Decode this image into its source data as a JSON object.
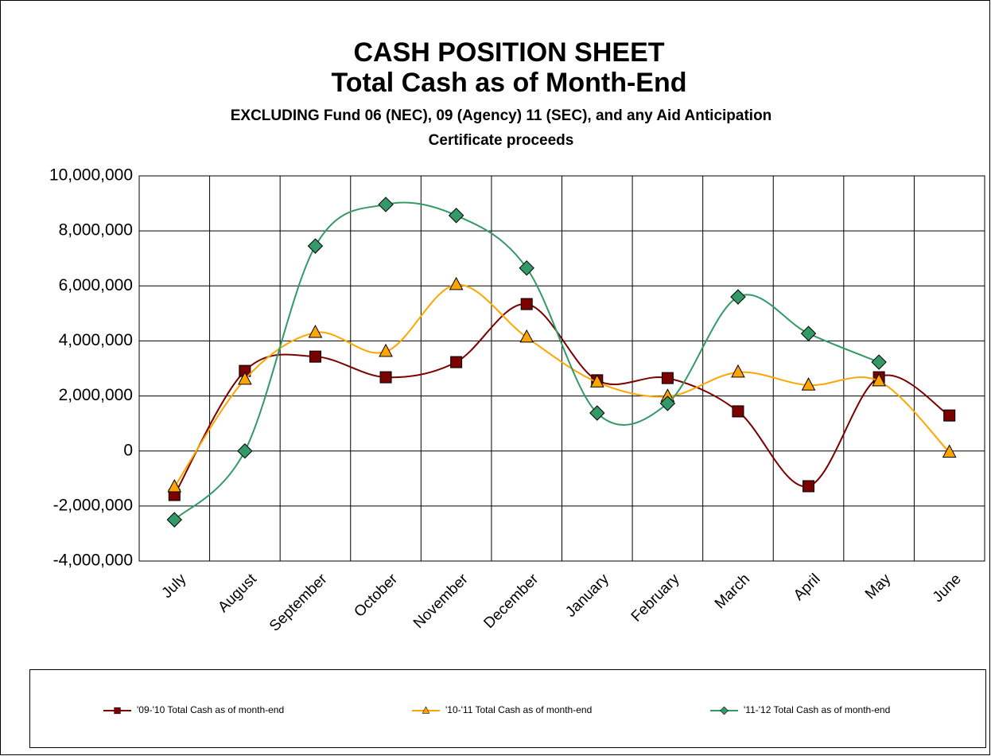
{
  "chart_data": {
    "type": "line",
    "title": [
      "CASH POSITION SHEET",
      "Total Cash as of Month-End"
    ],
    "subtitle": [
      "EXCLUDING Fund 06 (NEC), 09 (Agency) 11 (SEC), and any Aid Anticipation",
      "Certificate proceeds"
    ],
    "categories": [
      "July",
      "August",
      "September",
      "October",
      "November",
      "December",
      "January",
      "February",
      "March",
      "April",
      "May",
      "June"
    ],
    "series": [
      {
        "name": "'09-'10 Total Cash as of month-end",
        "color": "#7b0000",
        "marker": "square",
        "values": [
          -1600000,
          2910000,
          3430000,
          2680000,
          3230000,
          5340000,
          2570000,
          2650000,
          1440000,
          -1280000,
          2680000,
          1290000
        ]
      },
      {
        "name": "'10-'11 Total Cash as of month-end",
        "color": "#ffa500",
        "marker": "triangle",
        "values": [
          -1310000,
          2600000,
          4300000,
          3610000,
          6040000,
          4130000,
          2500000,
          1980000,
          2860000,
          2390000,
          2540000,
          -50000
        ]
      },
      {
        "name": "'11-'12 Total Cash as of month-end",
        "color": "#339966",
        "marker": "diamond",
        "values": [
          -2500000,
          0,
          7450000,
          8960000,
          8560000,
          6650000,
          1380000,
          1730000,
          5600000,
          4270000,
          3230000,
          null
        ]
      }
    ],
    "ylim": [
      -4000000,
      10000000
    ],
    "yticks": [
      {
        "value": -4000000,
        "label": "-4,000,000"
      },
      {
        "value": -2000000,
        "label": "-2,000,000"
      },
      0,
      {
        "value": 2000000,
        "label": "2,000,000"
      },
      {
        "value": 4000000,
        "label": "4,000,000"
      },
      {
        "value": 6000000,
        "label": "6,000,000"
      },
      {
        "value": 8000000,
        "label": "8,000,000"
      },
      {
        "value": 10000000,
        "label": "10,000,000"
      }
    ],
    "grid": true,
    "smooth": true,
    "legend": "bottom"
  }
}
